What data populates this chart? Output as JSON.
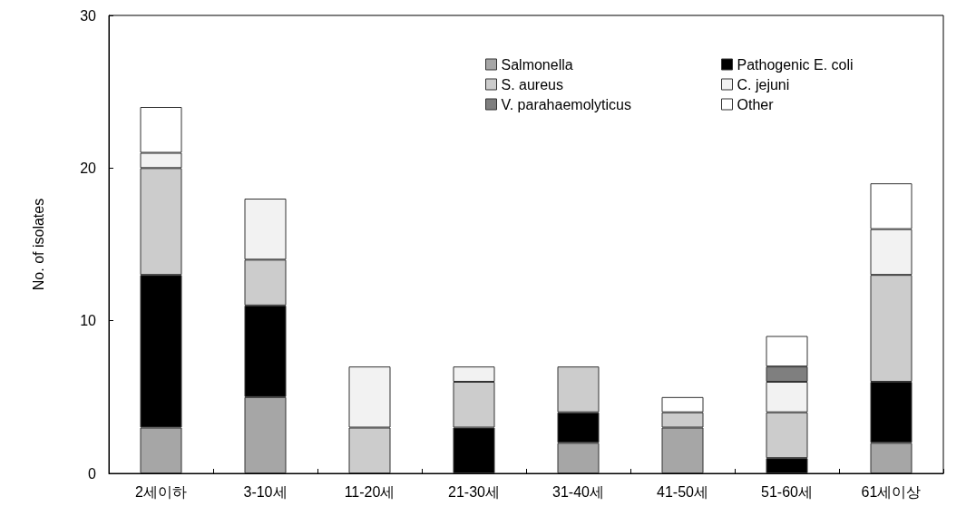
{
  "chart_data": {
    "type": "bar",
    "stacked": true,
    "ylabel": "No. of isolates",
    "categories": [
      "2세이하",
      "3-10세",
      "11-20세",
      "21-30세",
      "31-40세",
      "41-50세",
      "51-60세",
      "61세이상"
    ],
    "series": [
      {
        "name": "Salmonella",
        "color": "#a6a6a6",
        "values": [
          3,
          5,
          0,
          0,
          2,
          3,
          0,
          2
        ]
      },
      {
        "name": "Pathogenic E. coli",
        "color": "#000000",
        "values": [
          10,
          6,
          0,
          3,
          2,
          0,
          1,
          4
        ]
      },
      {
        "name": "S. aureus",
        "color": "#cccccc",
        "values": [
          7,
          3,
          3,
          3,
          3,
          1,
          3,
          7
        ]
      },
      {
        "name": "C. jejuni",
        "color": "#f2f2f2",
        "values": [
          1,
          4,
          4,
          1,
          0,
          0,
          2,
          3
        ]
      },
      {
        "name": "V. parahaemolyticus",
        "color": "#7f7f7f",
        "values": [
          0,
          0,
          0,
          0,
          0,
          0,
          1,
          0
        ]
      },
      {
        "name": "Other",
        "color": "#ffffff",
        "values": [
          3,
          0,
          0,
          0,
          0,
          1,
          2,
          3
        ]
      }
    ],
    "ylim": [
      0,
      30
    ],
    "yticks": [
      0,
      10,
      20,
      30
    ],
    "grid": false,
    "legend": "top right"
  }
}
